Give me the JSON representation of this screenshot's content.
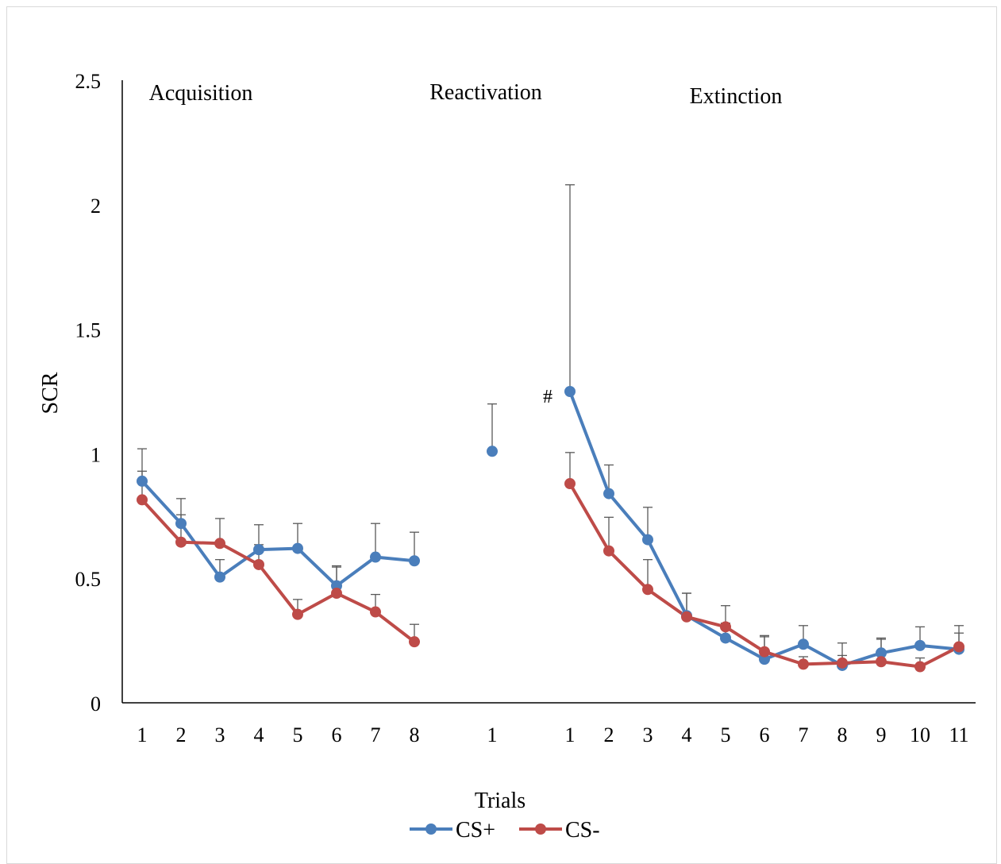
{
  "chart_data": {
    "type": "line",
    "xlabel": "Trials",
    "ylabel": "SCR",
    "ylim": [
      0,
      2.5
    ],
    "y_ticks": [
      "0",
      "0.5",
      "1",
      "1.5",
      "2",
      "2.5"
    ],
    "grid": false,
    "legend_placement": "bottom-center",
    "colors": {
      "cs_plus": "#4a7ebb",
      "cs_minus": "#be4b48",
      "error_bar": "#595959"
    },
    "phases": [
      {
        "label": "Acquisition",
        "categories": [
          "1",
          "2",
          "3",
          "4",
          "5",
          "6",
          "7",
          "8"
        ]
      },
      {
        "label": "Reactivation",
        "categories": [
          "1"
        ]
      },
      {
        "label": "Extinction",
        "categories": [
          "1",
          "2",
          "3",
          "4",
          "5",
          "6",
          "7",
          "8",
          "9",
          "10",
          "11"
        ]
      }
    ],
    "annotations": [
      {
        "text": "#",
        "phase": 2,
        "trial": 1
      }
    ],
    "series": [
      {
        "name": "CS+",
        "color": "#4a7ebb",
        "acquisition": [
          0.89,
          0.72,
          0.505,
          0.615,
          0.62,
          0.47,
          0.585,
          0.57
        ],
        "acquisition_err": [
          0.93,
          0.755,
          0.575,
          0.635,
          0.72,
          0.545,
          0.72,
          0.685
        ],
        "reactivation": [
          1.01
        ],
        "reactivation_err": [
          1.2
        ],
        "extinction": [
          1.25,
          0.84,
          0.655,
          0.35,
          0.26,
          0.175,
          0.235,
          0.15,
          0.2,
          0.23,
          0.215
        ],
        "extinction_err": [
          2.08,
          0.955,
          0.785,
          0.44,
          0.32,
          0.265,
          0.31,
          0.24,
          0.26,
          0.305,
          0.28
        ]
      },
      {
        "name": "CS-",
        "color": "#be4b48",
        "acquisition": [
          0.815,
          0.645,
          0.64,
          0.555,
          0.355,
          0.44,
          0.365,
          0.245
        ],
        "acquisition_err": [
          1.02,
          0.82,
          0.74,
          0.715,
          0.415,
          0.55,
          0.435,
          0.315
        ],
        "reactivation": [],
        "reactivation_err": [],
        "extinction": [
          0.88,
          0.61,
          0.455,
          0.345,
          0.305,
          0.205,
          0.155,
          0.16,
          0.165,
          0.145,
          0.225
        ],
        "extinction_err": [
          1.005,
          0.745,
          0.575,
          0.44,
          0.39,
          0.27,
          0.185,
          0.19,
          0.255,
          0.18,
          0.31
        ]
      }
    ]
  }
}
